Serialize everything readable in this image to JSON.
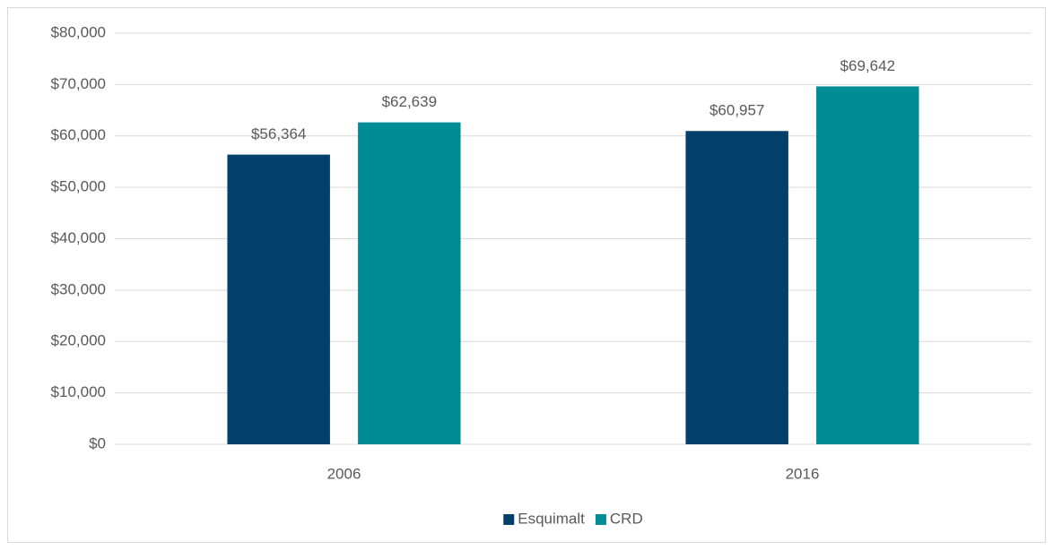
{
  "chart_data": {
    "type": "bar",
    "categories": [
      "2006",
      "2016"
    ],
    "series": [
      {
        "name": "Esquimalt",
        "color": "#05406b",
        "values": [
          56364,
          60957
        ],
        "value_labels": [
          "$56,364",
          "$60,957"
        ]
      },
      {
        "name": "CRD",
        "color": "#008c95",
        "values": [
          62639,
          69642
        ],
        "value_labels": [
          "$62,639",
          "$69,642"
        ]
      }
    ],
    "ylim": [
      0,
      80000
    ],
    "yticks": [
      {
        "value": 0,
        "label": "$0"
      },
      {
        "value": 10000,
        "label": "$10,000"
      },
      {
        "value": 20000,
        "label": "$20,000"
      },
      {
        "value": 30000,
        "label": "$30,000"
      },
      {
        "value": 40000,
        "label": "$40,000"
      },
      {
        "value": 50000,
        "label": "$50,000"
      },
      {
        "value": 60000,
        "label": "$60,000"
      },
      {
        "value": 70000,
        "label": "$70,000"
      },
      {
        "value": 80000,
        "label": "$80,000"
      }
    ],
    "grid": true,
    "legend": "bottom"
  }
}
